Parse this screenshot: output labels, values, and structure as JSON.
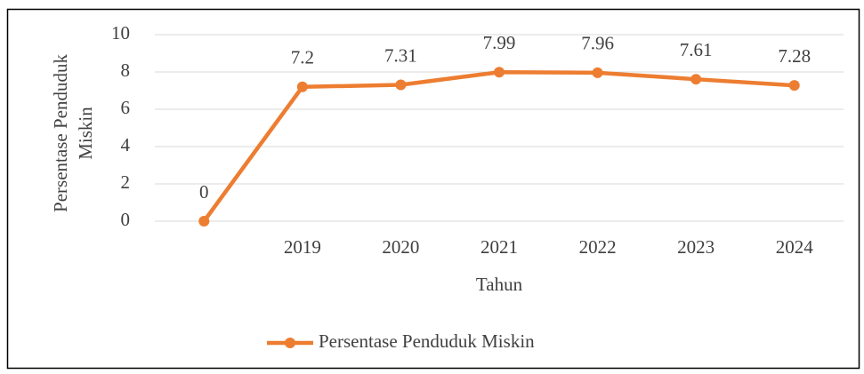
{
  "chart_data": {
    "type": "line",
    "ylabel": [
      "Persentase Penduduk",
      "Miskin"
    ],
    "xlabel": "Tahun",
    "categories": [
      null,
      "2019",
      "2020",
      "2021",
      "2022",
      "2023",
      "2024"
    ],
    "series": [
      {
        "name": "Persentase Penduduk Miskin",
        "color": "#ed7d31",
        "values": [
          0,
          7.2,
          7.31,
          7.99,
          7.96,
          7.61,
          7.28
        ]
      }
    ],
    "ylim": [
      0,
      10
    ],
    "yticks": [
      0,
      2,
      4,
      6,
      8,
      10
    ],
    "grid": true,
    "legend": "bottom"
  }
}
